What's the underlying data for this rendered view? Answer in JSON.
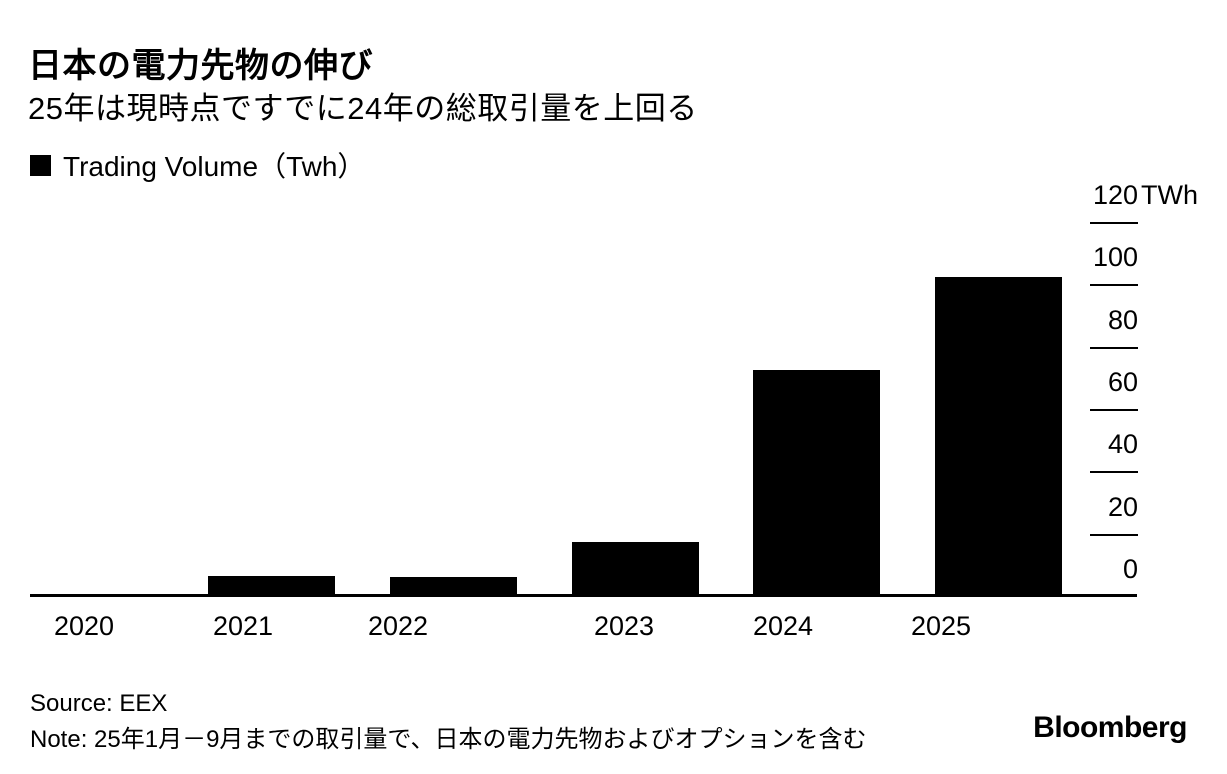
{
  "chart_data": {
    "type": "bar",
    "title": "日本の電力先物の伸び",
    "subtitle": "25年は現時点ですでに24年の総取引量を上回る",
    "legend": [
      {
        "label": "Trading Volume（Twh）",
        "color": "#000000"
      }
    ],
    "categories": [
      "2020",
      "2021",
      "2022",
      "2023",
      "2024",
      "2025"
    ],
    "values": [
      0.8,
      6.8,
      6.4,
      17.7,
      72.9,
      102.7
    ],
    "bar_color": "#000000",
    "unit": "TWh",
    "ylim": [
      0,
      120
    ],
    "ytick_values": [
      0,
      20,
      40,
      60,
      80,
      100,
      120
    ],
    "ytick_labels": [
      "0",
      "20",
      "40",
      "60",
      "80",
      "100",
      "120"
    ],
    "axis_side": "right",
    "grid": "off",
    "legend_position": "top-left"
  },
  "footer": {
    "source": "Source: EEX",
    "note": "Note: 25年1月－9月までの取引量で、日本の電力先物およびオプションを含む",
    "logo": "Bloomberg"
  },
  "colors": {
    "background": "#ffffff",
    "text": "#000000",
    "bar": "#000000"
  }
}
